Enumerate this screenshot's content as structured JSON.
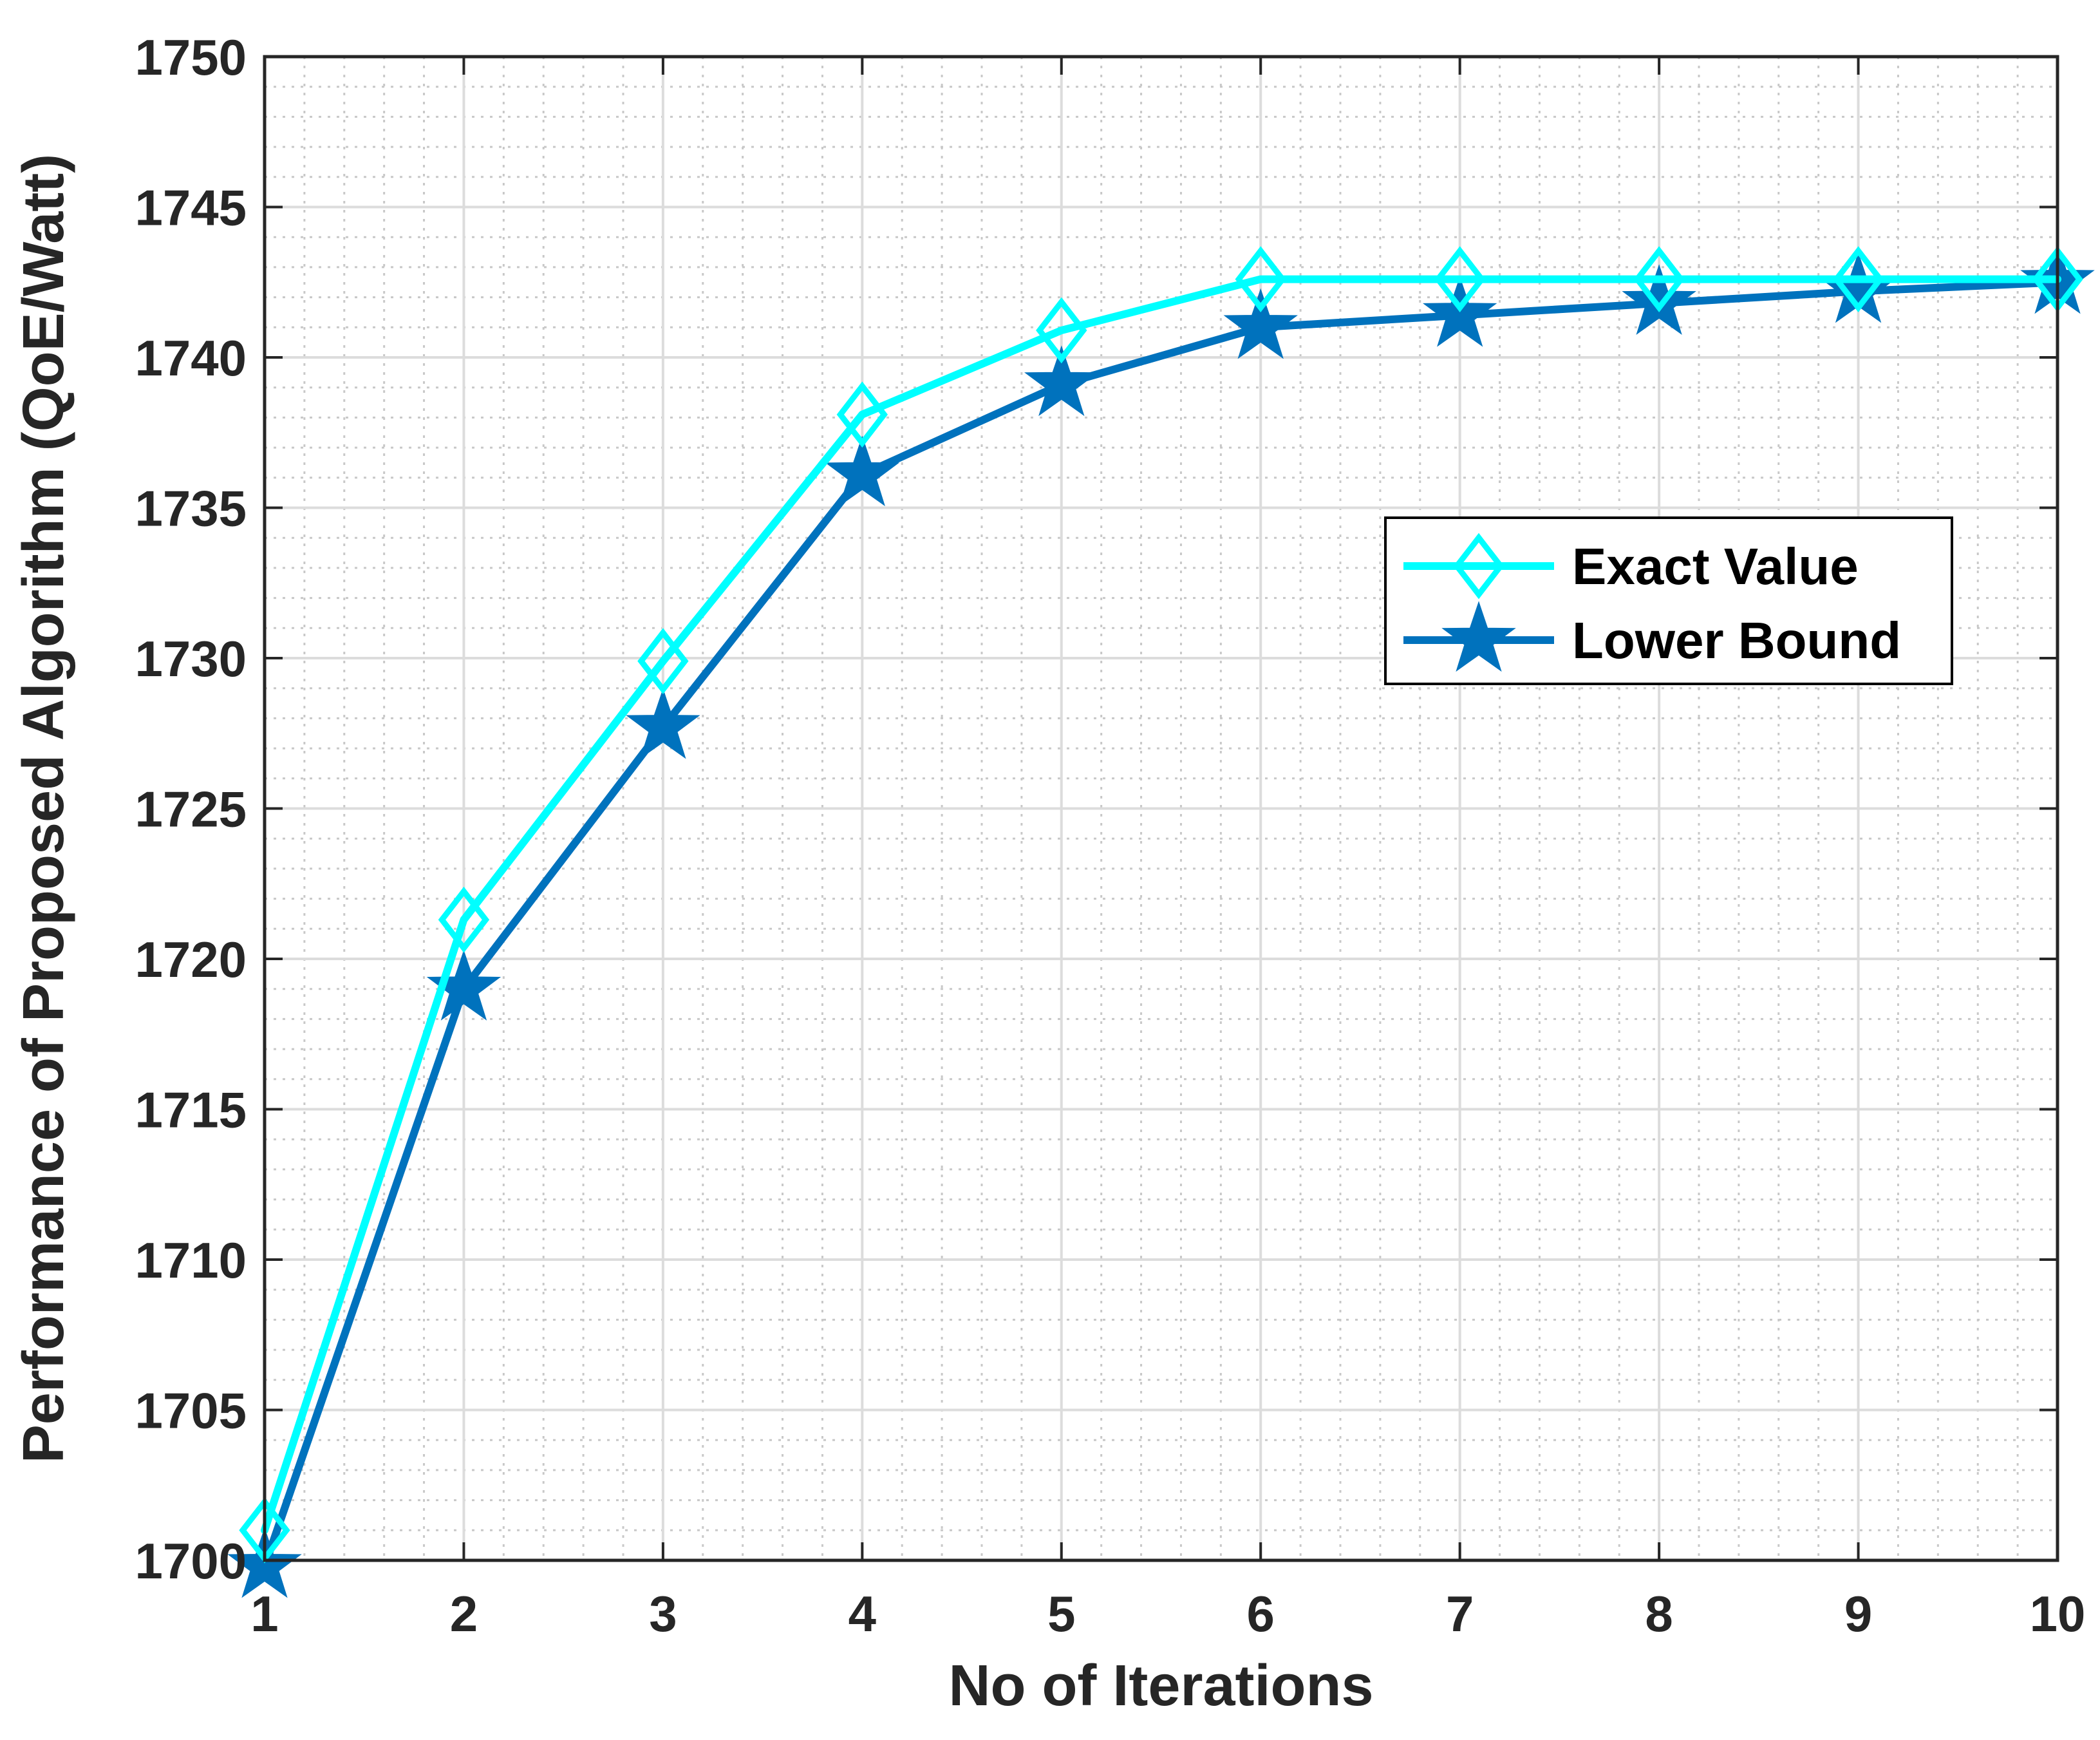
{
  "chart_data": {
    "type": "line",
    "title": "",
    "xlabel": "No of Iterations",
    "ylabel": "Performance of Proposed Algorithm (QoE/Watt)",
    "xlim": [
      1,
      10
    ],
    "ylim": [
      1700,
      1750
    ],
    "xticks": [
      1,
      2,
      3,
      4,
      5,
      6,
      7,
      8,
      9,
      10
    ],
    "yticks": [
      1700,
      1705,
      1710,
      1715,
      1720,
      1725,
      1730,
      1735,
      1740,
      1745,
      1750
    ],
    "grid": true,
    "minor_grid": true,
    "legend_position": "upper-right-middle",
    "x": [
      1,
      2,
      3,
      4,
      5,
      6,
      7,
      8,
      9,
      10
    ],
    "series": [
      {
        "name": "Exact Value",
        "values": [
          1701.0,
          1721.3,
          1729.9,
          1738.1,
          1740.9,
          1742.6,
          1742.6,
          1742.6,
          1742.6,
          1742.6
        ],
        "color": "#00FFFF",
        "marker": "diamond"
      },
      {
        "name": "Lower Bound",
        "values": [
          1699.8,
          1719.0,
          1727.7,
          1736.1,
          1739.1,
          1741.0,
          1741.4,
          1741.8,
          1742.2,
          1742.5
        ],
        "color": "#0072BD",
        "marker": "star"
      }
    ]
  }
}
